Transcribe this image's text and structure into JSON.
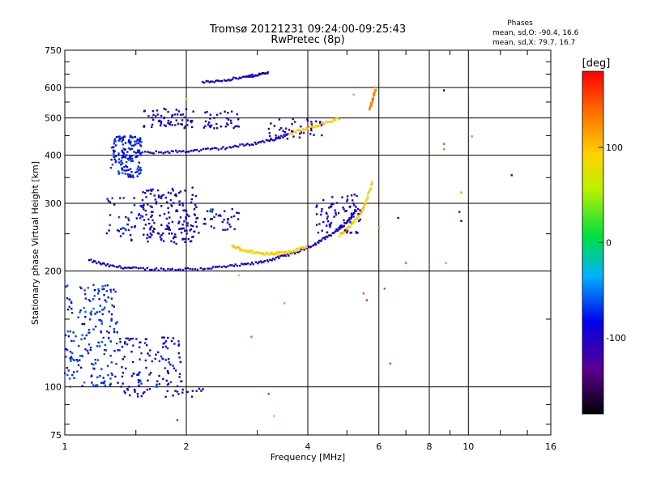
{
  "chart_data": {
    "type": "scatter",
    "title": "Tromsø 20121231 09:24:00-09:25:43",
    "subtitle": "RwPretec (8p)",
    "info": {
      "heading": "Phases",
      "line1": "mean, sd,O: -90.4, 16.6",
      "line2": "mean, sd,X: 79.7, 16.7"
    },
    "xlabel": "Frequency [MHz]",
    "ylabel": "Stationary phase Virtual Height [km]",
    "x_scale": "log",
    "y_scale": "log",
    "xlim": [
      1,
      16
    ],
    "ylim": [
      75,
      750
    ],
    "x_ticks": [
      {
        "value": 1,
        "label": "1"
      },
      {
        "value": 2,
        "label": "2"
      },
      {
        "value": 4,
        "label": "4"
      },
      {
        "value": 6,
        "label": "6"
      },
      {
        "value": 8,
        "label": "8"
      },
      {
        "value": 10,
        "label": "10"
      },
      {
        "value": 16,
        "label": "16"
      }
    ],
    "y_ticks": [
      {
        "value": 75,
        "label": "75"
      },
      {
        "value": 100,
        "label": "100"
      },
      {
        "value": 200,
        "label": "200"
      },
      {
        "value": 300,
        "label": "300"
      },
      {
        "value": 400,
        "label": "400"
      },
      {
        "value": 500,
        "label": "500"
      },
      {
        "value": 600,
        "label": "600"
      },
      {
        "value": 750,
        "label": "750"
      }
    ],
    "grid": true,
    "colorbar": {
      "label": "[deg]",
      "range": [
        -180,
        180
      ],
      "ticks": [
        {
          "value": 100,
          "label": "100"
        },
        {
          "value": 0,
          "label": "0"
        },
        {
          "value": -100,
          "label": "-100"
        }
      ]
    },
    "traces": [
      {
        "f": [
          1.15,
          1.3,
          1.5,
          1.8,
          2.2,
          2.6,
          3.0,
          3.4,
          3.8,
          4.2,
          4.6,
          5.0,
          5.3
        ],
        "h": [
          213,
          206,
          203,
          202,
          203,
          206,
          210,
          217,
          225,
          236,
          250,
          268,
          290
        ],
        "phase": -95
      },
      {
        "f": [
          4.8,
          5.1,
          5.4,
          5.6,
          5.8
        ],
        "h": [
          248,
          262,
          282,
          305,
          345
        ],
        "phase": 95
      },
      {
        "f": [
          2.6,
          2.8,
          3.0,
          3.2,
          3.4,
          3.7,
          4.0
        ],
        "h": [
          232,
          226,
          223,
          222,
          223,
          226,
          232
        ],
        "phase": 90
      },
      {
        "f": [
          1.5,
          1.8,
          2.1,
          2.5,
          2.9,
          3.3,
          3.6
        ],
        "h": [
          405,
          408,
          411,
          418,
          428,
          440,
          455
        ],
        "phase": -95
      },
      {
        "f": [
          3.6,
          4.0,
          4.4,
          4.8
        ],
        "h": [
          455,
          470,
          485,
          500
        ],
        "phase": 95
      },
      {
        "f": [
          2.2,
          2.5,
          2.8,
          3.0,
          3.2
        ],
        "h": [
          618,
          628,
          638,
          648,
          655
        ],
        "phase": -98
      },
      {
        "f": [
          5.7,
          5.8,
          5.9
        ],
        "h": [
          530,
          560,
          600
        ],
        "phase": 130
      }
    ],
    "clusters": [
      {
        "f": [
          1.0,
          1.35
        ],
        "h": [
          100,
          185
        ],
        "n": 190,
        "phase": -70
      },
      {
        "f": [
          1.35,
          1.95
        ],
        "h": [
          100,
          135
        ],
        "n": 110,
        "phase": -85
      },
      {
        "f": [
          1.3,
          1.55
        ],
        "h": [
          350,
          450
        ],
        "n": 150,
        "phase": -75
      },
      {
        "f": [
          1.55,
          2.15
        ],
        "h": [
          235,
          330
        ],
        "n": 170,
        "phase": -95
      },
      {
        "f": [
          1.25,
          1.55
        ],
        "h": [
          240,
          310
        ],
        "n": 40,
        "phase": -80
      },
      {
        "f": [
          2.2,
          2.7
        ],
        "h": [
          255,
          290
        ],
        "n": 35,
        "phase": -85
      },
      {
        "f": [
          1.55,
          2.1
        ],
        "h": [
          470,
          530
        ],
        "n": 60,
        "phase": -95
      },
      {
        "f": [
          2.2,
          2.7
        ],
        "h": [
          470,
          520
        ],
        "n": 35,
        "phase": -95
      },
      {
        "f": [
          4.2,
          5.4
        ],
        "h": [
          250,
          320
        ],
        "n": 80,
        "phase": -97
      },
      {
        "f": [
          1.4,
          2.2
        ],
        "h": [
          94,
          99
        ],
        "n": 30,
        "phase": -95
      },
      {
        "f": [
          3.2,
          4.5
        ],
        "h": [
          440,
          500
        ],
        "n": 40,
        "phase": -100
      }
    ],
    "outliers": [
      {
        "f": 8.7,
        "h": 590,
        "phase": -100
      },
      {
        "f": 8.7,
        "h": 428,
        "phase": 140
      },
      {
        "f": 8.7,
        "h": 415,
        "phase": 140
      },
      {
        "f": 9.5,
        "h": 285,
        "phase": -100
      },
      {
        "f": 9.6,
        "h": 270,
        "phase": -100
      },
      {
        "f": 6.7,
        "h": 275,
        "phase": -100
      },
      {
        "f": 8.8,
        "h": 210,
        "phase": 10
      },
      {
        "f": 7.0,
        "h": 210,
        "phase": 150
      },
      {
        "f": 12.8,
        "h": 355,
        "phase": -90
      },
      {
        "f": 10.2,
        "h": 448,
        "phase": 130
      },
      {
        "f": 9.6,
        "h": 320,
        "phase": 130
      },
      {
        "f": 6.2,
        "h": 180,
        "phase": 150
      },
      {
        "f": 6.4,
        "h": 115,
        "phase": 160
      },
      {
        "f": 5.5,
        "h": 175,
        "phase": 150
      },
      {
        "f": 5.6,
        "h": 168,
        "phase": 165
      },
      {
        "f": 3.2,
        "h": 96,
        "phase": 160
      },
      {
        "f": 3.3,
        "h": 84,
        "phase": 120
      },
      {
        "f": 1.9,
        "h": 82,
        "phase": 170
      },
      {
        "f": 2.7,
        "h": 195,
        "phase": 110
      },
      {
        "f": 2.9,
        "h": 135,
        "phase": -20
      },
      {
        "f": 3.5,
        "h": 165,
        "phase": 30
      },
      {
        "f": 6.0,
        "h": 260,
        "phase": 110
      },
      {
        "f": 2.3,
        "h": 290,
        "phase": 20
      },
      {
        "f": 2.0,
        "h": 560,
        "phase": 60
      },
      {
        "f": 5.2,
        "h": 575,
        "phase": 120
      }
    ]
  }
}
